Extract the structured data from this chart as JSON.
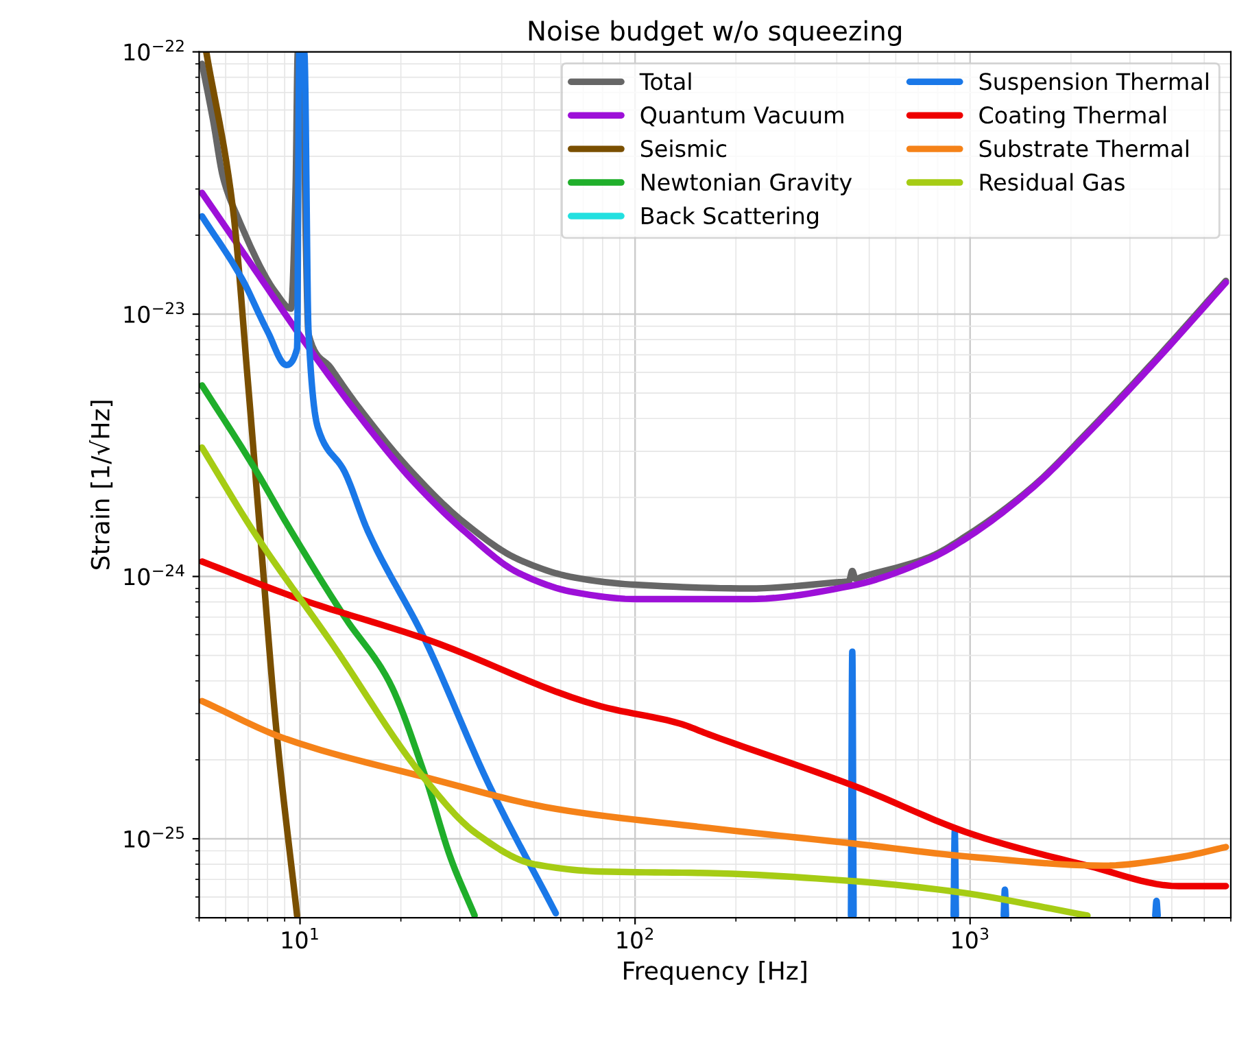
{
  "chart_data": {
    "type": "line",
    "title": "Noise budget w/o squeezing",
    "xlabel": "Frequency [Hz]",
    "ylabel": "Strain [1/√Hz]",
    "log": "xy",
    "grid": true,
    "legend": "top right",
    "marker": "none",
    "line_style": "solid",
    "xlim": [
      5,
      6000
    ],
    "ylim": [
      5e-26,
      1e-22
    ],
    "xticks": [
      {
        "value": 10,
        "label": "10$^{1}$"
      },
      {
        "value": 100,
        "label": "10$^{2}$"
      },
      {
        "value": 1000,
        "label": "10$^{3}$"
      }
    ],
    "yticks": [
      {
        "value": 1e-25,
        "label": "10$^{−25}$"
      },
      {
        "value": 1e-24,
        "label": "10$^{−24}$"
      },
      {
        "value": 1e-23,
        "label": "10$^{−23}$"
      },
      {
        "value": 1e-22,
        "label": "10$^{−22}$"
      }
    ],
    "series": [
      {
        "name": "Total",
        "color": "#666666",
        "x": [
          5.1,
          5.5,
          5.9,
          6.5,
          8.5,
          9.4,
          9.7,
          9.85,
          10.2,
          10.4,
          10.6,
          12.4,
          15,
          21.6,
          31,
          45,
          66,
          100,
          219,
          400,
          435,
          445,
          455,
          480,
          750,
          1000,
          1550,
          2240,
          3570,
          5800
        ],
        "values": [
          9e-23,
          5.5e-23,
          3.3e-23,
          2.36e-23,
          1.2e-23,
          1.05e-23,
          3e-23,
          1e-22,
          1e-22,
          2e-23,
          8.4e-24,
          6.2e-24,
          4.4e-24,
          2.5e-24,
          1.6e-24,
          1.16e-24,
          9.9e-25,
          9.3e-25,
          9e-25,
          9.5e-25,
          9.6e-25,
          1.05e-24,
          9.8e-25,
          1e-24,
          1.18e-24,
          1.46e-24,
          2.22e-24,
          3.55e-24,
          6.7e-24,
          1.34e-23
        ]
      },
      {
        "name": "Quantum Vacuum",
        "color": "#9d10d8",
        "x": [
          5.1,
          7.1,
          10,
          14.9,
          21.6,
          31.3,
          45,
          66,
          100,
          219,
          440,
          750,
          1000,
          1550,
          2240,
          3570,
          5800
        ],
        "values": [
          2.9e-23,
          1.57e-23,
          8.3e-24,
          4.15e-24,
          2.33e-24,
          1.47e-24,
          1.03e-24,
          8.7e-25,
          8.2e-25,
          8.2e-25,
          9.2e-25,
          1.16e-24,
          1.43e-24,
          2.2e-24,
          3.5e-24,
          6.6e-24,
          1.32e-23
        ]
      },
      {
        "name": "Seismic",
        "color": "#7a4f00",
        "x": [
          5.25,
          6.3,
          7.0,
          7.6,
          8.5,
          9.8
        ],
        "values": [
          1e-22,
          2.55e-23,
          5.4e-24,
          1.47e-24,
          2.6e-25,
          5.1e-26
        ]
      },
      {
        "name": "Newtonian Gravity",
        "color": "#1fae2a",
        "x": [
          5.1,
          7.3,
          9.1,
          13.6,
          18.4,
          23.5,
          28.2,
          33.2
        ],
        "values": [
          5.35e-24,
          2.6e-24,
          1.6e-24,
          7e-25,
          4e-25,
          1.77e-25,
          8.4e-26,
          5.1e-26
        ]
      },
      {
        "name": "Back Scattering",
        "color": "#22e0e0"
      },
      {
        "name": "Suspension Thermal",
        "color": "#1a78e8",
        "x": [
          5.1,
          6.7,
          8.0,
          9.1,
          9.8,
          9.95,
          10.3,
          10.6,
          11.3,
          13.6,
          15.9,
          23.5,
          36.7,
          58,
          null,
          441,
          445,
          449,
          null,
          893,
          900,
          907,
          null,
          1260,
          1270,
          1280,
          null,
          3570,
          3600,
          3630
        ],
        "values": [
          2.36e-23,
          1.37e-23,
          8.6e-24,
          6.4e-24,
          7.4e-24,
          1e-22,
          1e-22,
          8.6e-24,
          3.7e-24,
          2.5e-24,
          1.5e-24,
          5.8e-25,
          1.6e-25,
          5.2e-26,
          null,
          5.1e-26,
          5.17e-25,
          5.1e-26,
          null,
          5.1e-26,
          1.07e-25,
          5.1e-26,
          null,
          5.1e-26,
          6.4e-26,
          5.1e-26,
          null,
          5.1e-26,
          5.8e-26,
          5.1e-26
        ]
      },
      {
        "name": "Coating Thermal",
        "color": "#ee0000",
        "x": [
          5.1,
          10,
          23.5,
          79,
          136,
          166,
          445,
          1040,
          2240,
          4200,
          5800
        ],
        "values": [
          1.14e-24,
          8.2e-25,
          5.8e-25,
          3.2e-25,
          2.75e-25,
          2.5e-25,
          1.6e-25,
          1.03e-25,
          7.9e-26,
          6.6e-26,
          6.6e-26
        ]
      },
      {
        "name": "Substrate Thermal",
        "color": "#f58218",
        "x": [
          5.1,
          9.1,
          23.5,
          58,
          166,
          445,
          1040,
          2500,
          4200,
          5800
        ],
        "values": [
          3.35e-25,
          2.4e-25,
          1.72e-25,
          1.3e-25,
          1.1e-25,
          9.6e-26,
          8.5e-26,
          7.9e-26,
          8.5e-26,
          9.3e-26
        ]
      },
      {
        "name": "Residual Gas",
        "color": "#a6cc14",
        "x": [
          5.1,
          7.3,
          12.4,
          23.5,
          33.5,
          50,
          79,
          166,
          445,
          890,
          2240
        ],
        "values": [
          3.1e-24,
          1.47e-24,
          5.6e-25,
          1.7e-25,
          1.05e-25,
          8e-26,
          7.5e-26,
          7.4e-26,
          6.9e-26,
          6.3e-26,
          5.1e-26
        ]
      }
    ]
  }
}
